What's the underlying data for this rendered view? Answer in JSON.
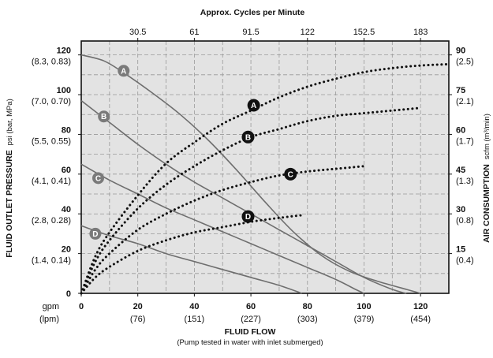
{
  "chart_data": {
    "type": "line",
    "title": "Approx. Cycles per Minute",
    "top_axis": {
      "ticks": [
        "30.5",
        "61",
        "91.5",
        "122",
        "152.5",
        "183"
      ],
      "at_gpm": [
        20,
        40,
        60,
        80,
        100,
        120
      ]
    },
    "x_axis": {
      "label": "FLUID FLOW",
      "sublabel": "(Pump tested in water with inlet submerged)",
      "unit_primary": "gpm",
      "unit_secondary": "(lpm)",
      "ticks": [
        {
          "value": 0,
          "label": "0",
          "sub": ""
        },
        {
          "value": 20,
          "label": "20",
          "sub": "(76)"
        },
        {
          "value": 40,
          "label": "40",
          "sub": "(151)"
        },
        {
          "value": 60,
          "label": "60",
          "sub": "(227)"
        },
        {
          "value": 80,
          "label": "80",
          "sub": "(303)"
        },
        {
          "value": 100,
          "label": "100",
          "sub": "(379)"
        },
        {
          "value": 120,
          "label": "120",
          "sub": "(454)"
        }
      ],
      "xlim": [
        0,
        130
      ]
    },
    "y_left": {
      "label": "FLUID OUTLET PRESSURE",
      "unit": "psi (bar, MPa)",
      "ticks": [
        {
          "value": 0,
          "label": "0",
          "sub": ""
        },
        {
          "value": 20,
          "label": "20",
          "sub": "(1.4, 0.14)"
        },
        {
          "value": 40,
          "label": "40",
          "sub": "(2.8, 0.28)"
        },
        {
          "value": 60,
          "label": "60",
          "sub": "(4.1, 0.41)"
        },
        {
          "value": 80,
          "label": "80",
          "sub": "(5.5, 0.55)"
        },
        {
          "value": 100,
          "label": "100",
          "sub": "(7.0, 0.70)"
        },
        {
          "value": 120,
          "label": "120",
          "sub": "(8.3, 0.83)"
        }
      ],
      "ylim": [
        0,
        127
      ]
    },
    "y_right": {
      "label": "AIR CONSUMPTION",
      "unit": "scfm (m³/min)",
      "ticks": [
        {
          "value": 15,
          "label": "15",
          "sub": "(0.4)"
        },
        {
          "value": 30,
          "label": "30",
          "sub": "(0.8)"
        },
        {
          "value": 45,
          "label": "45",
          "sub": "(1.3)"
        },
        {
          "value": 60,
          "label": "60",
          "sub": "(1.7)"
        },
        {
          "value": 75,
          "label": "75",
          "sub": "(2.1)"
        },
        {
          "value": 90,
          "label": "90",
          "sub": "(2.5)"
        }
      ],
      "ylim": [
        0,
        95.25
      ]
    },
    "grid": true,
    "pressure_series": [
      {
        "name": "A",
        "points": [
          [
            0,
            120
          ],
          [
            8,
            117
          ],
          [
            15,
            111
          ],
          [
            25,
            101
          ],
          [
            35,
            90
          ],
          [
            45,
            77
          ],
          [
            55,
            62
          ],
          [
            65,
            46
          ],
          [
            75,
            31
          ],
          [
            85,
            19
          ],
          [
            95,
            11
          ],
          [
            105,
            6
          ],
          [
            115,
            2
          ],
          [
            120,
            0
          ]
        ]
      },
      {
        "name": "B",
        "points": [
          [
            0,
            97
          ],
          [
            10,
            86
          ],
          [
            20,
            75
          ],
          [
            30,
            65
          ],
          [
            40,
            56
          ],
          [
            50,
            48
          ],
          [
            60,
            40
          ],
          [
            70,
            32
          ],
          [
            80,
            24
          ],
          [
            90,
            16
          ],
          [
            100,
            8
          ],
          [
            110,
            2
          ],
          [
            115,
            0
          ]
        ]
      },
      {
        "name": "C",
        "points": [
          [
            0,
            65
          ],
          [
            10,
            57
          ],
          [
            20,
            50
          ],
          [
            30,
            43
          ],
          [
            40,
            37
          ],
          [
            50,
            31
          ],
          [
            60,
            25
          ],
          [
            70,
            19
          ],
          [
            80,
            13
          ],
          [
            90,
            7
          ],
          [
            97,
            2
          ],
          [
            100,
            0
          ]
        ]
      },
      {
        "name": "D",
        "points": [
          [
            0,
            34
          ],
          [
            10,
            29
          ],
          [
            20,
            25
          ],
          [
            30,
            20
          ],
          [
            40,
            16
          ],
          [
            50,
            12
          ],
          [
            60,
            8
          ],
          [
            70,
            4
          ],
          [
            78,
            0
          ]
        ]
      }
    ],
    "air_series": [
      {
        "name": "A",
        "points": [
          [
            0,
            0
          ],
          [
            5,
            14
          ],
          [
            10,
            23
          ],
          [
            20,
            37
          ],
          [
            30,
            49
          ],
          [
            40,
            57
          ],
          [
            50,
            64
          ],
          [
            60,
            69
          ],
          [
            70,
            74
          ],
          [
            80,
            78
          ],
          [
            90,
            81
          ],
          [
            100,
            83.5
          ],
          [
            110,
            85
          ],
          [
            120,
            86
          ],
          [
            130,
            86.5
          ]
        ]
      },
      {
        "name": "B",
        "points": [
          [
            0,
            0
          ],
          [
            5,
            12
          ],
          [
            10,
            20
          ],
          [
            20,
            32
          ],
          [
            30,
            41
          ],
          [
            40,
            48
          ],
          [
            50,
            54
          ],
          [
            60,
            59
          ],
          [
            70,
            62
          ],
          [
            80,
            65
          ],
          [
            90,
            67
          ],
          [
            100,
            68
          ],
          [
            110,
            69
          ],
          [
            120,
            70
          ]
        ]
      },
      {
        "name": "C",
        "points": [
          [
            0,
            0
          ],
          [
            5,
            9
          ],
          [
            10,
            15
          ],
          [
            20,
            24
          ],
          [
            30,
            30
          ],
          [
            40,
            35
          ],
          [
            50,
            39
          ],
          [
            60,
            42
          ],
          [
            70,
            44.5
          ],
          [
            80,
            46
          ],
          [
            90,
            47
          ],
          [
            100,
            48
          ]
        ]
      },
      {
        "name": "D",
        "points": [
          [
            0,
            0
          ],
          [
            5,
            6
          ],
          [
            10,
            10
          ],
          [
            20,
            16
          ],
          [
            30,
            20
          ],
          [
            40,
            23
          ],
          [
            50,
            25
          ],
          [
            60,
            27
          ],
          [
            70,
            28.5
          ],
          [
            78,
            29.5
          ]
        ]
      }
    ],
    "pressure_labels": [
      {
        "name": "A",
        "x": 15,
        "y": 112
      },
      {
        "name": "B",
        "x": 8,
        "y": 89
      },
      {
        "name": "C",
        "x": 6,
        "y": 58
      },
      {
        "name": "D",
        "x": 5,
        "y": 30
      }
    ],
    "air_labels": [
      {
        "name": "A",
        "x": 61,
        "y": 71
      },
      {
        "name": "B",
        "x": 59,
        "y": 59
      },
      {
        "name": "C",
        "x": 74,
        "y": 45
      },
      {
        "name": "D",
        "x": 59,
        "y": 29
      }
    ]
  }
}
